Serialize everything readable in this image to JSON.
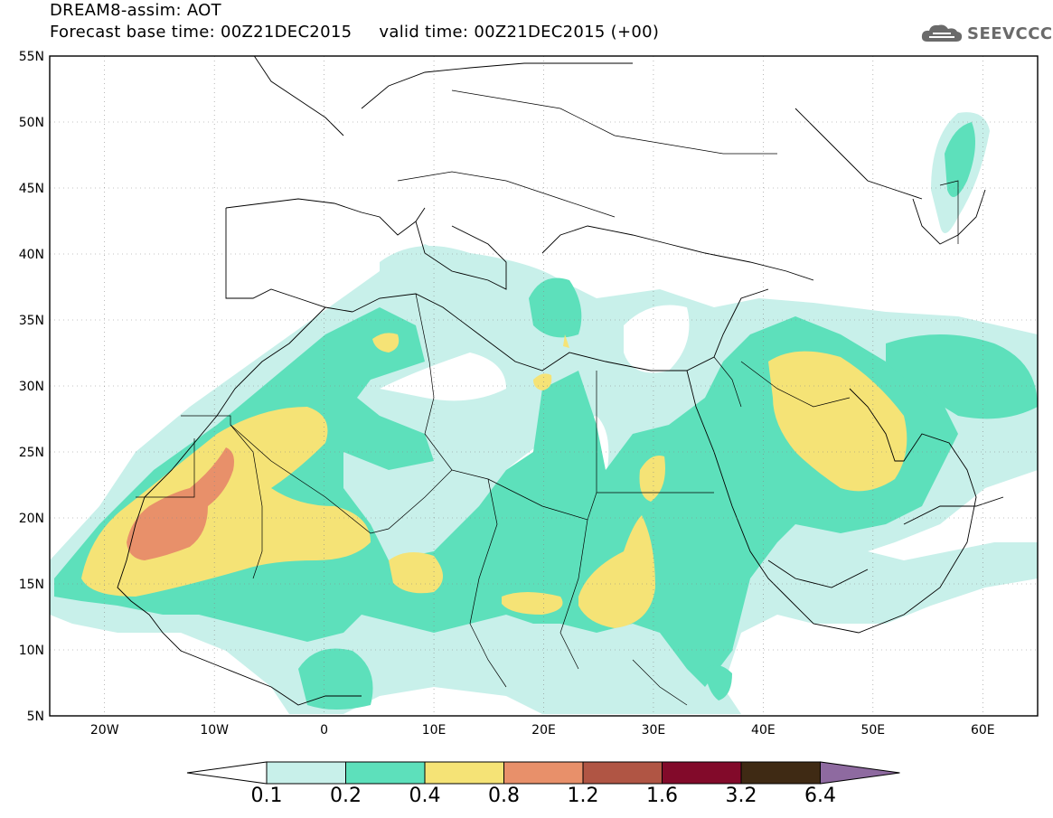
{
  "header": {
    "title_line1": "DREAM8-assim: AOT",
    "title_line2": "Forecast base time: 00Z21DEC2015     valid time: 00Z21DEC2015 (+00)"
  },
  "logo": {
    "text": "SEEVCCC",
    "icon": "cloud-icon",
    "color": "#6a6a6a"
  },
  "map": {
    "projection": "lat-lon",
    "lon_range": [
      -25,
      65
    ],
    "lat_range": [
      5,
      55
    ],
    "grid": "dotted",
    "lat_ticks": [
      "55N",
      "50N",
      "45N",
      "40N",
      "35N",
      "30N",
      "25N",
      "20N",
      "15N",
      "10N",
      "5N"
    ],
    "lon_ticks": [
      "20W",
      "10W",
      "0",
      "10E",
      "20E",
      "30E",
      "40E",
      "50E",
      "60E"
    ],
    "coastline_color": "#000000"
  },
  "colorbar": {
    "labels": [
      "0.1",
      "0.2",
      "0.4",
      "0.8",
      "1.2",
      "1.6",
      "3.2",
      "6.4"
    ],
    "colors": [
      "#c8f0ea",
      "#5de0bb",
      "#f5e376",
      "#e8906a",
      "#b05544",
      "#820a2a",
      "#3f2a14",
      "#8e6aa0"
    ]
  }
}
